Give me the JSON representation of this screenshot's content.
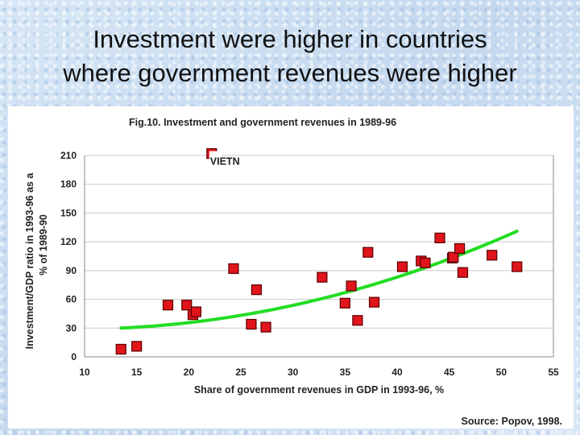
{
  "slide": {
    "title_line1": "Investment were higher in countries",
    "title_line2": "where government revenues were higher"
  },
  "chart_data": {
    "type": "scatter",
    "title": "Fig.10. Investment and  government revenues in 1989-96",
    "xlabel": "Share of government revenues in GDP in 1993-96, %",
    "ylabel_line1": "Investment/GDP ratio in 1993-96 as a",
    "ylabel_line2": "% of 1989-90",
    "source": "Source: Popov, 1998.",
    "xlim": [
      10,
      55
    ],
    "ylim": [
      0,
      210
    ],
    "x_ticks": [
      "10",
      "15",
      "20",
      "25",
      "30",
      "35",
      "40",
      "45",
      "50",
      "55"
    ],
    "y_ticks": [
      "0",
      "30",
      "60",
      "90",
      "120",
      "150",
      "180",
      "210"
    ],
    "annotation": {
      "text": "VIETN",
      "x": 22.2,
      "y": 212
    },
    "points": [
      {
        "x": 13.5,
        "y": 8
      },
      {
        "x": 15.0,
        "y": 11
      },
      {
        "x": 18.0,
        "y": 54
      },
      {
        "x": 19.8,
        "y": 54
      },
      {
        "x": 20.4,
        "y": 44
      },
      {
        "x": 20.7,
        "y": 47
      },
      {
        "x": 24.3,
        "y": 92
      },
      {
        "x": 26.0,
        "y": 34
      },
      {
        "x": 26.5,
        "y": 70
      },
      {
        "x": 27.4,
        "y": 31
      },
      {
        "x": 32.8,
        "y": 83
      },
      {
        "x": 35.0,
        "y": 56
      },
      {
        "x": 35.6,
        "y": 74
      },
      {
        "x": 36.2,
        "y": 38
      },
      {
        "x": 37.2,
        "y": 109
      },
      {
        "x": 37.8,
        "y": 57
      },
      {
        "x": 40.5,
        "y": 94
      },
      {
        "x": 42.3,
        "y": 100
      },
      {
        "x": 42.7,
        "y": 98
      },
      {
        "x": 44.1,
        "y": 124
      },
      {
        "x": 45.3,
        "y": 103
      },
      {
        "x": 45.4,
        "y": 104
      },
      {
        "x": 46.0,
        "y": 113
      },
      {
        "x": 46.3,
        "y": 88
      },
      {
        "x": 49.1,
        "y": 106
      },
      {
        "x": 51.5,
        "y": 94
      }
    ],
    "trendline": {
      "type": "quadratic",
      "x_range": [
        13.5,
        51.5
      ],
      "points": [
        [
          13.5,
          30
        ],
        [
          32.5,
          60
        ],
        [
          51.5,
          131
        ]
      ]
    },
    "colors": {
      "marker_fill": "#e0141b",
      "marker_stroke": "#5a0000",
      "trend": "#22dd22",
      "grid": "#c8c8c8",
      "axis": "#888888"
    }
  }
}
